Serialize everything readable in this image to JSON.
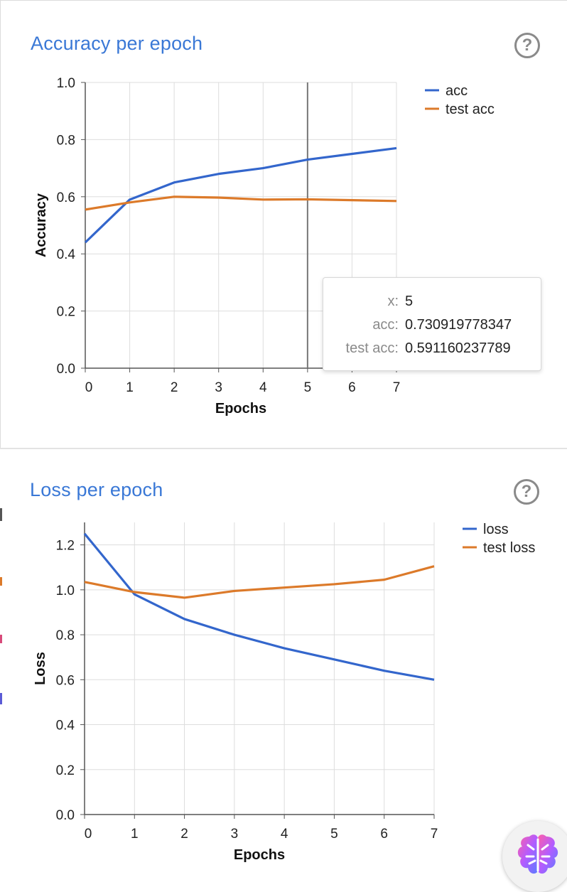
{
  "panels": [
    {
      "title": "Accuracy per epoch",
      "help_icon": "question-circle-icon"
    },
    {
      "title": "Loss per epoch",
      "help_icon": "question-circle-icon"
    }
  ],
  "tooltip": {
    "rows": [
      {
        "key": "x:",
        "value": "5"
      },
      {
        "key": "acc:",
        "value": "0.730919778347"
      },
      {
        "key": "test acc:",
        "value": "0.591160237789"
      }
    ]
  },
  "assistant_button": {
    "icon": "brain-icon"
  },
  "colors": {
    "blue": "#3366cc",
    "orange": "#dc7a2a",
    "title": "#3a78d6",
    "grid": "#dddddd"
  },
  "chart_data": [
    {
      "type": "line",
      "title": "Accuracy per epoch",
      "xlabel": "Epochs",
      "ylabel": "Accuracy",
      "x": [
        0,
        1,
        2,
        3,
        4,
        5,
        6,
        7
      ],
      "xticks": [
        "0",
        "1",
        "2",
        "3",
        "4",
        "5",
        "6",
        "7"
      ],
      "yticks": [
        "0.0",
        "0.2",
        "0.4",
        "0.6",
        "0.8",
        "1.0"
      ],
      "ylim": [
        0,
        1.0
      ],
      "xlim": [
        0,
        7
      ],
      "grid": true,
      "legend_position": "top-right",
      "hover_x": 5,
      "series": [
        {
          "name": "acc",
          "color": "#3366cc",
          "values": [
            0.44,
            0.59,
            0.65,
            0.68,
            0.7,
            0.73,
            0.75,
            0.77
          ]
        },
        {
          "name": "test acc",
          "legend_text": "test acc",
          "color": "#dc7a2a",
          "values": [
            0.555,
            0.58,
            0.6,
            0.597,
            0.59,
            0.591,
            0.588,
            0.585
          ]
        }
      ]
    },
    {
      "type": "line",
      "title": "Loss per epoch",
      "xlabel": "Epochs",
      "ylabel": "Loss",
      "x": [
        0,
        1,
        2,
        3,
        4,
        5,
        6,
        7
      ],
      "xticks": [
        "0",
        "1",
        "2",
        "3",
        "4",
        "5",
        "6",
        "7"
      ],
      "yticks": [
        "0.0",
        "0.2",
        "0.4",
        "0.6",
        "0.8",
        "1.0",
        "1.2"
      ],
      "ylim": [
        0,
        1.3
      ],
      "xlim": [
        0,
        7
      ],
      "grid": true,
      "legend_position": "top-right",
      "series": [
        {
          "name": "loss",
          "color": "#3366cc",
          "values": [
            1.25,
            0.98,
            0.87,
            0.8,
            0.74,
            0.69,
            0.64,
            0.6
          ]
        },
        {
          "name": "test loss",
          "legend_text": "test loss",
          "color": "#dc7a2a",
          "values": [
            1.035,
            0.99,
            0.965,
            0.995,
            1.01,
            1.025,
            1.045,
            1.105
          ]
        }
      ]
    }
  ]
}
